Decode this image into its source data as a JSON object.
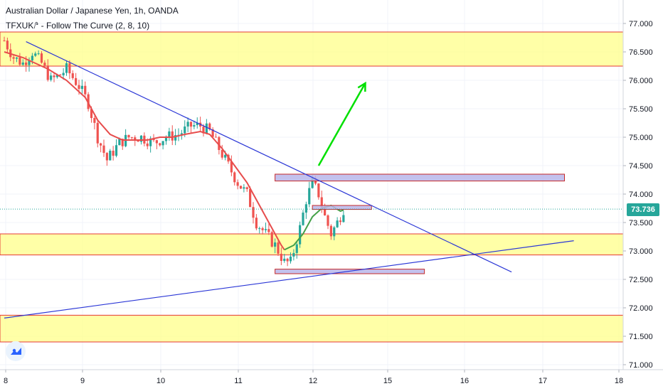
{
  "header": {
    "title": "Australian Dollar / Japanese Yen, 1h, OANDA",
    "indicator": "TFXUK⭚ - Follow The Curve (2, 8, 10)"
  },
  "price_badge": "73.736",
  "colors": {
    "up": "#26a69a",
    "down": "#ef5350",
    "zone_fill": "#ffff8a",
    "zone_border": "#e53935",
    "box_fill": "#b9b6ea",
    "box_border": "#c62828",
    "trendline": "#2a36d6",
    "curve_red": "#e74c4c",
    "curve_green": "#43a047",
    "arrow": "#00e000",
    "last_price": "#26a69a"
  },
  "chart_data": {
    "type": "candlestick",
    "title": "Australian Dollar / Japanese Yen, 1h, OANDA",
    "x_tick_labels": [
      "8",
      "9",
      "10",
      "11",
      "12",
      "15",
      "16",
      "17",
      "18"
    ],
    "y_tick_labels": [
      "77.000",
      "76.500",
      "76.000",
      "75.500",
      "75.000",
      "74.500",
      "74.000",
      "73.500",
      "73.000",
      "72.500",
      "72.000",
      "71.500",
      "71.000"
    ],
    "ylim": [
      70.9,
      77.35
    ],
    "grid": true,
    "last_price": 73.736,
    "close_path": [
      [
        0,
        76.7
      ],
      [
        3,
        76.4
      ],
      [
        6,
        76.3
      ],
      [
        9,
        76.5
      ],
      [
        12,
        76.3
      ],
      [
        15,
        76.0
      ],
      [
        18,
        76.1
      ],
      [
        20,
        76.2
      ],
      [
        24,
        75.9
      ],
      [
        27,
        75.6
      ],
      [
        30,
        75.0
      ],
      [
        33,
        74.6
      ],
      [
        37,
        74.9
      ],
      [
        40,
        75.0
      ],
      [
        44,
        75.0
      ],
      [
        48,
        74.9
      ],
      [
        52,
        75.0
      ],
      [
        56,
        75.05
      ],
      [
        60,
        75.2
      ],
      [
        63,
        75.2
      ],
      [
        66,
        75.1
      ],
      [
        69,
        74.8
      ],
      [
        72,
        74.5
      ],
      [
        75,
        74.2
      ],
      [
        78,
        74.0
      ],
      [
        81,
        73.5
      ],
      [
        84,
        73.3
      ],
      [
        87,
        73.1
      ],
      [
        90,
        72.8
      ],
      [
        92,
        72.8
      ],
      [
        95,
        73.4
      ],
      [
        97,
        73.9
      ],
      [
        99,
        74.2
      ],
      [
        101,
        74.0
      ],
      [
        103,
        73.6
      ],
      [
        105,
        73.3
      ],
      [
        107,
        73.5
      ],
      [
        109,
        73.74
      ]
    ],
    "curve_red": [
      [
        0,
        76.5
      ],
      [
        6,
        76.4
      ],
      [
        14,
        76.2
      ],
      [
        20,
        76.0
      ],
      [
        26,
        75.7
      ],
      [
        30,
        75.3
      ],
      [
        34,
        75.05
      ],
      [
        38,
        74.95
      ],
      [
        42,
        74.95
      ],
      [
        46,
        74.95
      ],
      [
        50,
        75.0
      ],
      [
        54,
        75.0
      ],
      [
        58,
        75.05
      ],
      [
        63,
        75.1
      ],
      [
        66,
        75.05
      ],
      [
        70,
        74.8
      ],
      [
        74,
        74.5
      ],
      [
        78,
        74.2
      ],
      [
        82,
        73.8
      ],
      [
        86,
        73.4
      ],
      [
        89,
        73.1
      ],
      [
        90,
        73.02
      ]
    ],
    "curve_green": [
      [
        90,
        73.02
      ],
      [
        93,
        73.1
      ],
      [
        96,
        73.3
      ],
      [
        99,
        73.6
      ],
      [
        102,
        73.75
      ],
      [
        105,
        73.8
      ],
      [
        108,
        73.7
      ],
      [
        109,
        73.72
      ]
    ],
    "zones": [
      [
        76.25,
        76.85
      ],
      [
        72.93,
        73.3
      ],
      [
        71.4,
        71.87
      ]
    ],
    "boxes": [
      {
        "t0": 87,
        "t1": 180,
        "y0": 74.23,
        "y1": 74.35
      },
      {
        "t0": 99,
        "t1": 118,
        "y0": 73.73,
        "y1": 73.8
      },
      {
        "t0": 87,
        "t1": 135,
        "y0": 72.6,
        "y1": 72.68
      }
    ],
    "trendlines": [
      {
        "t0": 7,
        "y0": 76.68,
        "t1": 163,
        "y1": 72.63
      },
      {
        "t0": 0,
        "y0": 71.82,
        "t1": 183,
        "y1": 73.18
      }
    ],
    "arrow": {
      "t0": 101,
      "y0": 74.5,
      "t1": 116,
      "y1": 75.95
    }
  }
}
